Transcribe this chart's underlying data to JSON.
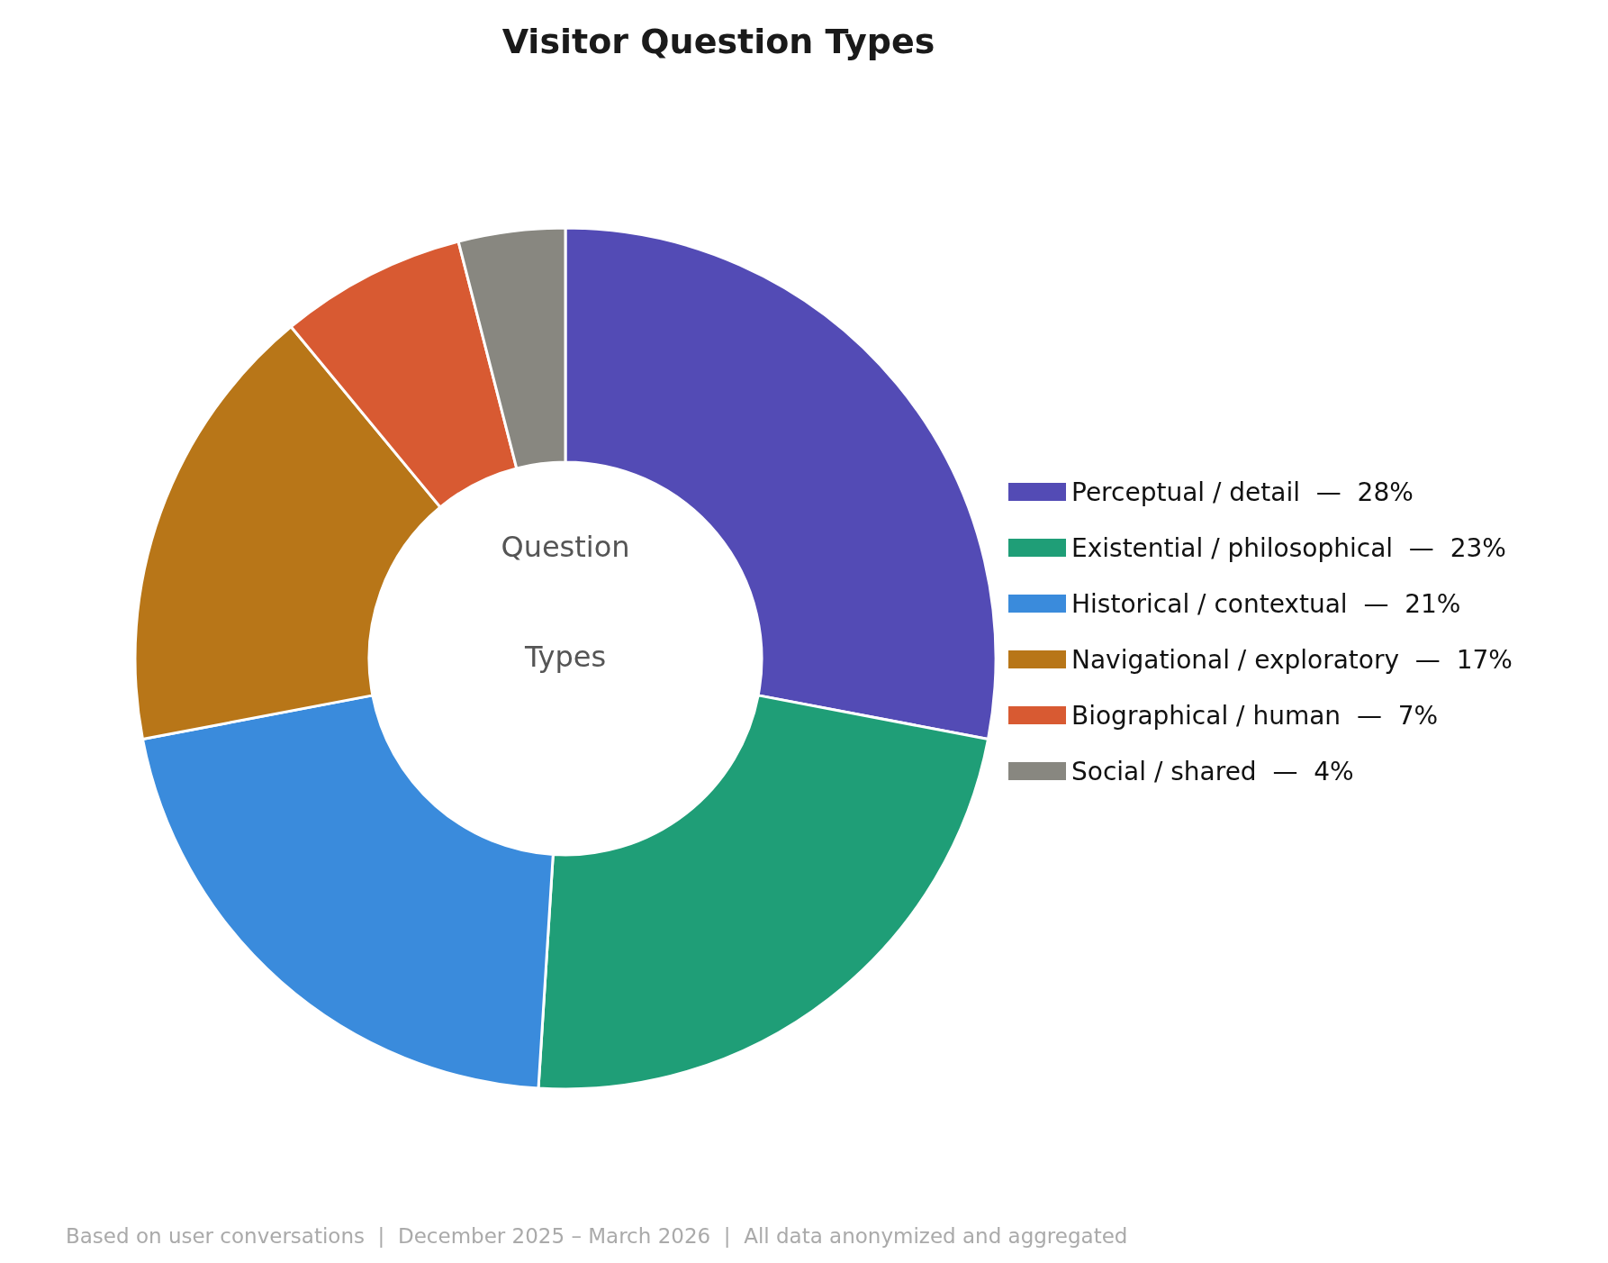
{
  "chart_data": {
    "type": "donut",
    "title": "Visitor Question Types",
    "categories": [
      "Perceptual / detail  —  28%",
      "Existential / philosophical  —  23%",
      "Historical / contextual  —  21%",
      "Navigational / exploratory  —  17%",
      "Biographical / human  —  7%",
      "Social / shared  —  4%"
    ],
    "values": [
      28,
      23,
      21,
      17,
      7,
      4
    ],
    "colors": [
      "#534bb5",
      "#1f9e77",
      "#3a8bdc",
      "#b87618",
      "#d85a32",
      "#888780"
    ],
    "legend": "right",
    "annotations": [
      "Question",
      "Types",
      "Based on user conversations  |  December 2025 – March 2026  |  All data anonymized and aggregated"
    ]
  }
}
